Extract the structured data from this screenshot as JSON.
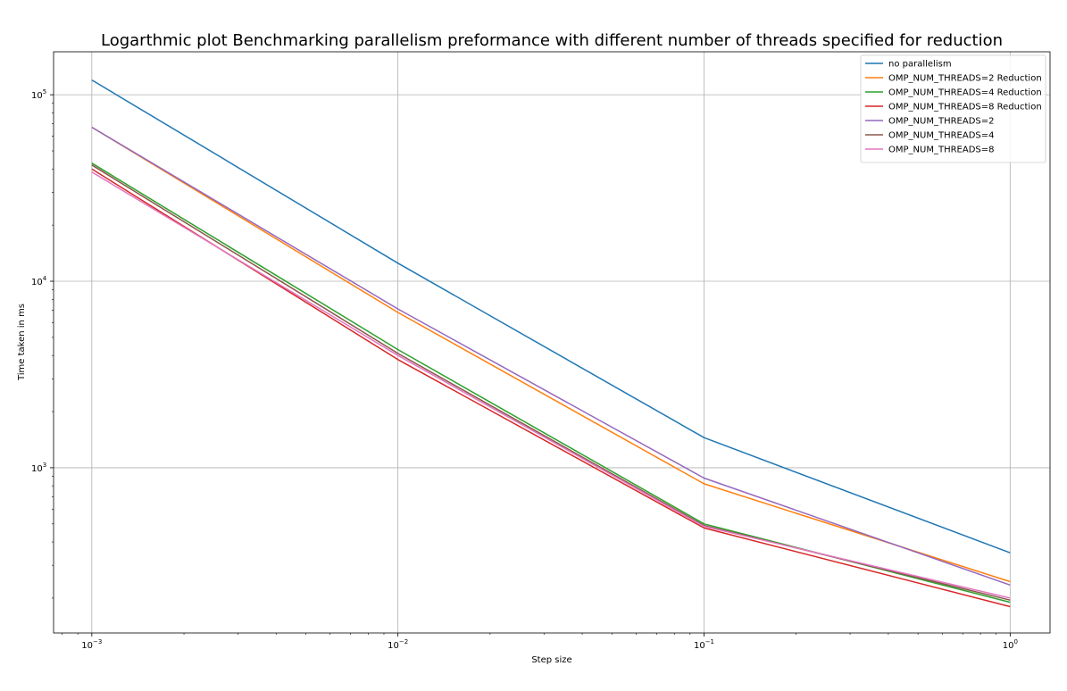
{
  "chart_data": {
    "type": "line",
    "title": "Logarthmic plot Benchmarking parallelism preformance with different number of threads specified for reduction",
    "xlabel": "Step size",
    "ylabel": "Time taken in ms",
    "xscale": "log",
    "yscale": "log",
    "xlim": [
      0.00075,
      1.35
    ],
    "ylim": [
      130,
      170000
    ],
    "grid": true,
    "legend_position": "top-right",
    "x": [
      0.001,
      0.01,
      0.1,
      1
    ],
    "x_ticks": [
      {
        "base": "10",
        "exp": "−3"
      },
      {
        "base": "10",
        "exp": "−2"
      },
      {
        "base": "10",
        "exp": "−1"
      },
      {
        "base": "10",
        "exp": "0"
      }
    ],
    "y_ticks": [
      {
        "base": "10",
        "exp": "3"
      },
      {
        "base": "10",
        "exp": "4"
      },
      {
        "base": "10",
        "exp": "5"
      }
    ],
    "series": [
      {
        "name": "no parallelism",
        "color": "#1f77b4",
        "values": [
          120000,
          12500,
          1450,
          350
        ]
      },
      {
        "name": "OMP_NUM_THREADS=2 Reduction",
        "color": "#ff7f0e",
        "values": [
          67000,
          6800,
          820,
          245
        ]
      },
      {
        "name": "OMP_NUM_THREADS=4 Reduction",
        "color": "#2ca02c",
        "values": [
          43000,
          4300,
          500,
          190
        ]
      },
      {
        "name": "OMP_NUM_THREADS=8 Reduction",
        "color": "#d62728",
        "values": [
          40000,
          3800,
          475,
          180
        ]
      },
      {
        "name": "OMP_NUM_THREADS=2",
        "color": "#9467bd",
        "values": [
          67000,
          7100,
          880,
          235
        ]
      },
      {
        "name": "OMP_NUM_THREADS=4",
        "color": "#8c564b",
        "values": [
          42000,
          4100,
          490,
          195
        ]
      },
      {
        "name": "OMP_NUM_THREADS=8",
        "color": "#e377c2",
        "values": [
          38500,
          4000,
          485,
          200
        ]
      }
    ]
  }
}
